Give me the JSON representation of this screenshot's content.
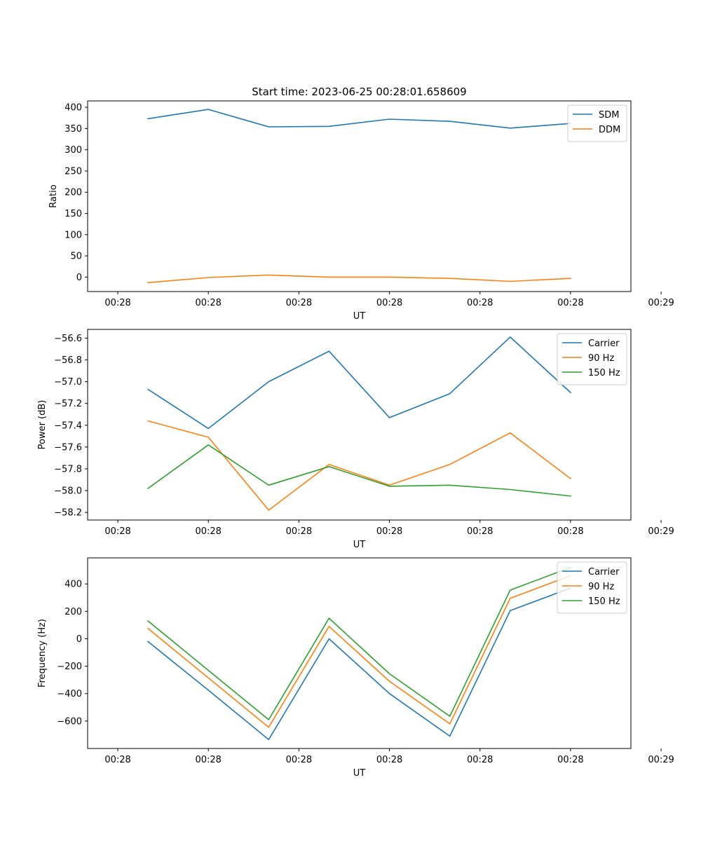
{
  "figure": {
    "title": "Start time: 2023-06-25 00:28:01.658609"
  },
  "colors": {
    "blue": "#1f77b4",
    "orange": "#ff7f0e",
    "green": "#2ca02c"
  },
  "chart_data": [
    {
      "type": "line",
      "title": "Start time: 2023-06-25 00:28:01.658609",
      "xlabel": "UT",
      "ylabel": "Ratio",
      "xlim": [
        -0.5,
        8.5
      ],
      "x": [
        0.5,
        1.5,
        2.5,
        3.5,
        4.5,
        5.5,
        6.5,
        7.5
      ],
      "xticks": [
        0,
        1.5,
        3,
        4.5,
        6,
        7.5,
        9
      ],
      "xticklabels": [
        "00:28",
        "00:28",
        "00:28",
        "00:28",
        "00:28",
        "00:28",
        "00:28"
      ],
      "xticks_all": [
        0,
        1.5,
        3,
        4.5,
        6,
        7.5,
        9
      ],
      "xticklabels_all": [
        "00:28",
        "00:28",
        "00:28",
        "00:28",
        "00:28",
        "00:28",
        "00:29"
      ],
      "ylim": [
        -34,
        415
      ],
      "yticks": [
        0,
        50,
        100,
        150,
        200,
        250,
        300,
        350,
        400
      ],
      "yticklabels": [
        "0",
        "50",
        "100",
        "150",
        "200",
        "250",
        "300",
        "350",
        "400"
      ],
      "legend": "top-right",
      "series": [
        {
          "name": "SDM",
          "color": "#1f77b4",
          "values": [
            373,
            395,
            354,
            355,
            372,
            367,
            351,
            362
          ]
        },
        {
          "name": "DDM",
          "color": "#ff7f0e",
          "values": [
            -13,
            -1,
            5,
            0,
            0,
            -3,
            -10,
            -3
          ]
        }
      ]
    },
    {
      "type": "line",
      "title": "",
      "xlabel": "UT",
      "ylabel": "Power (dB)",
      "xlim": [
        -0.5,
        8.5
      ],
      "x": [
        0.5,
        1.5,
        2.5,
        3.5,
        4.5,
        5.5,
        6.5,
        7.5
      ],
      "xticks_all": [
        0,
        1.5,
        3,
        4.5,
        6,
        7.5,
        9
      ],
      "xticklabels_all": [
        "00:28",
        "00:28",
        "00:28",
        "00:28",
        "00:28",
        "00:28",
        "00:29"
      ],
      "ylim": [
        -58.27,
        -56.52
      ],
      "yticks": [
        -58.2,
        -58.0,
        -57.8,
        -57.6,
        -57.4,
        -57.2,
        -57.0,
        -56.8,
        -56.6
      ],
      "yticklabels": [
        "−58.2",
        "−58.0",
        "−57.8",
        "−57.6",
        "−57.4",
        "−57.2",
        "−57.0",
        "−56.8",
        "−56.6"
      ],
      "legend": "top-right",
      "series": [
        {
          "name": "Carrier",
          "color": "#1f77b4",
          "values": [
            -57.07,
            -57.43,
            -57.0,
            -56.72,
            -57.33,
            -57.11,
            -56.59,
            -57.1
          ]
        },
        {
          "name": "90 Hz",
          "color": "#ff7f0e",
          "values": [
            -57.36,
            -57.51,
            -58.18,
            -57.76,
            -57.95,
            -57.76,
            -57.47,
            -57.89
          ]
        },
        {
          "name": "150 Hz",
          "color": "#2ca02c",
          "values": [
            -57.98,
            -57.58,
            -57.95,
            -57.78,
            -57.96,
            -57.95,
            -57.99,
            -58.05
          ]
        }
      ]
    },
    {
      "type": "line",
      "title": "",
      "xlabel": "UT",
      "ylabel": "Frequency (Hz)",
      "xlim": [
        -0.5,
        8.5
      ],
      "x": [
        0.5,
        1.5,
        2.5,
        3.5,
        4.5,
        5.5,
        6.5,
        7.5
      ],
      "xticks_all": [
        0,
        1.5,
        3,
        4.5,
        6,
        7.5,
        9
      ],
      "xticklabels_all": [
        "00:28",
        "00:28",
        "00:28",
        "00:28",
        "00:28",
        "00:28",
        "00:29"
      ],
      "ylim": [
        -800,
        590
      ],
      "yticks": [
        -600,
        -400,
        -200,
        0,
        200,
        400
      ],
      "yticklabels": [
        "−600",
        "−400",
        "−200",
        "0",
        "200",
        "400"
      ],
      "legend": "top-right",
      "series": [
        {
          "name": "Carrier",
          "color": "#1f77b4",
          "values": [
            -20,
            -375,
            -735,
            0,
            -400,
            -710,
            205,
            370
          ]
        },
        {
          "name": "90 Hz",
          "color": "#ff7f0e",
          "values": [
            75,
            -285,
            -645,
            90,
            -310,
            -620,
            295,
            460
          ]
        },
        {
          "name": "150 Hz",
          "color": "#2ca02c",
          "values": [
            130,
            -230,
            -590,
            150,
            -255,
            -565,
            355,
            520
          ]
        }
      ]
    }
  ]
}
